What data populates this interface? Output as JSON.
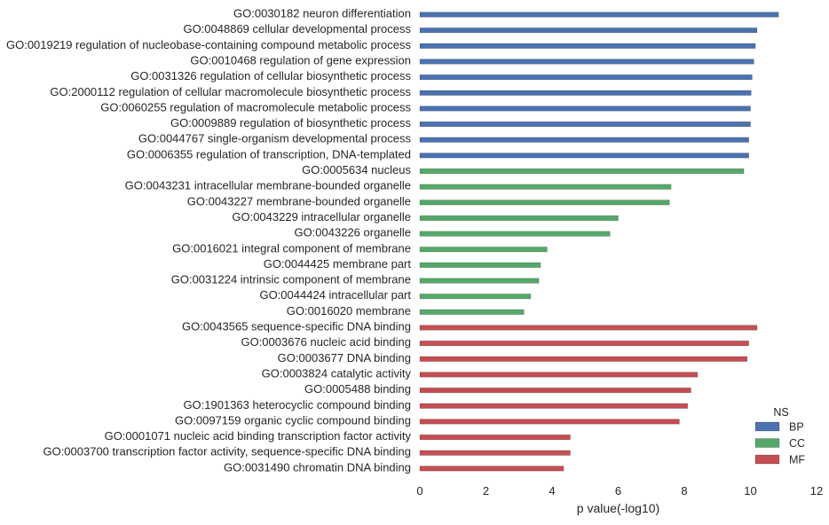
{
  "chart_data": {
    "type": "bar",
    "orientation": "horizontal",
    "xlabel": "p value(-log10)",
    "ylabel": "",
    "xlim": [
      0,
      12
    ],
    "xticks": [
      0,
      2,
      4,
      6,
      8,
      10,
      12
    ],
    "grid": false,
    "legend": {
      "title": "NS",
      "placement": "bottom-right",
      "entries": [
        {
          "label": "BP",
          "color": "#4c72b0"
        },
        {
          "label": "CC",
          "color": "#55a868"
        },
        {
          "label": "MF",
          "color": "#c44e52"
        }
      ]
    },
    "categories": [
      "GO:0030182 neuron differentiation",
      "GO:0048869 cellular developmental process",
      "GO:0019219 regulation of nucleobase-containing compound metabolic process",
      "GO:0010468 regulation of gene expression",
      "GO:0031326 regulation of cellular biosynthetic process",
      "GO:2000112 regulation of cellular macromolecule biosynthetic process",
      "GO:0060255 regulation of macromolecule metabolic process",
      "GO:0009889 regulation of biosynthetic process",
      "GO:0044767 single-organism developmental process",
      "GO:0006355 regulation of transcription, DNA-templated",
      "GO:0005634 nucleus",
      "GO:0043231 intracellular membrane-bounded organelle",
      "GO:0043227 membrane-bounded organelle",
      "GO:0043229 intracellular organelle",
      "GO:0043226 organelle",
      "GO:0016021 integral component of membrane",
      "GO:0044425 membrane part",
      "GO:0031224 intrinsic component of membrane",
      "GO:0044424 intracellular part",
      "GO:0016020 membrane",
      "GO:0043565 sequence-specific DNA binding",
      "GO:0003676 nucleic acid binding",
      "GO:0003677 DNA binding",
      "GO:0003824 catalytic activity",
      "GO:0005488 binding",
      "GO:1901363 heterocyclic compound binding",
      "GO:0097159 organic cyclic compound binding",
      "GO:0001071 nucleic acid binding transcription factor activity",
      "GO:0003700 transcription factor activity, sequence-specific DNA binding",
      "GO:0031490 chromatin DNA binding"
    ],
    "groups": [
      "BP",
      "BP",
      "BP",
      "BP",
      "BP",
      "BP",
      "BP",
      "BP",
      "BP",
      "BP",
      "CC",
      "CC",
      "CC",
      "CC",
      "CC",
      "CC",
      "CC",
      "CC",
      "CC",
      "CC",
      "MF",
      "MF",
      "MF",
      "MF",
      "MF",
      "MF",
      "MF",
      "MF",
      "MF",
      "MF"
    ],
    "values": [
      10.85,
      10.2,
      10.15,
      10.1,
      10.05,
      10.02,
      10.0,
      10.0,
      9.95,
      9.95,
      9.8,
      7.6,
      7.55,
      6.0,
      5.75,
      3.85,
      3.65,
      3.6,
      3.35,
      3.15,
      10.2,
      9.95,
      9.9,
      8.4,
      8.2,
      8.1,
      7.85,
      4.55,
      4.55,
      4.35
    ]
  }
}
